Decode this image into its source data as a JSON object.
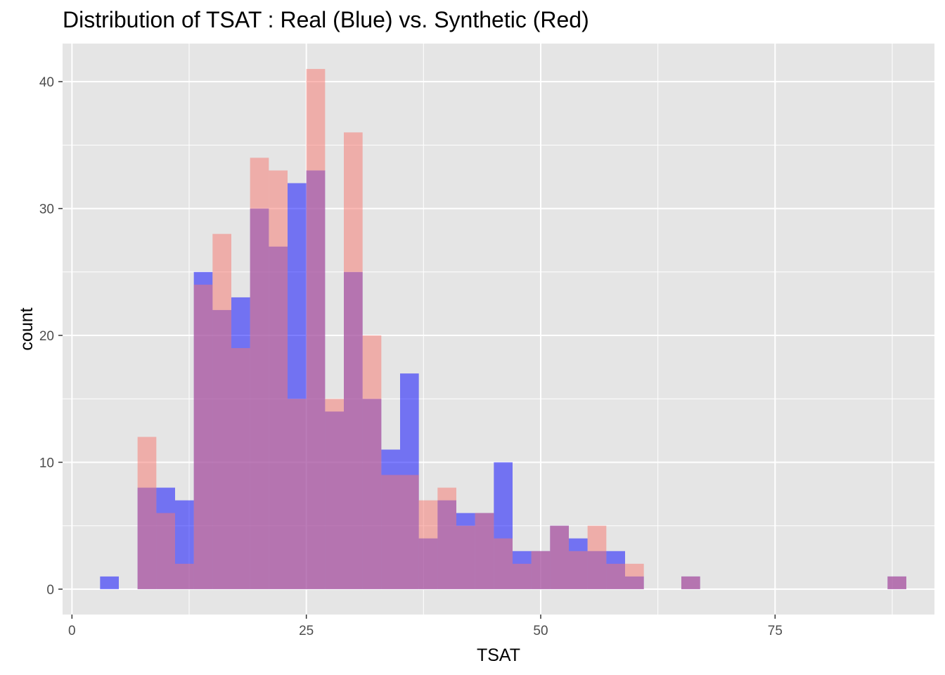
{
  "chart_data": {
    "type": "bar",
    "title": "Distribution of TSAT : Real (Blue) vs. Synthetic (Red)",
    "xlabel": "TSAT",
    "ylabel": "count",
    "xlim": [
      -1,
      92
    ],
    "ylim": [
      -2,
      43
    ],
    "x_ticks": [
      0,
      25,
      50,
      75
    ],
    "y_ticks": [
      0,
      10,
      20,
      30,
      40
    ],
    "grid": true,
    "legend": "none",
    "bin_width": 2,
    "bin_centers": [
      4,
      6,
      8,
      10,
      12,
      14,
      16,
      18,
      20,
      22,
      24,
      26,
      28,
      30,
      32,
      34,
      36,
      38,
      40,
      42,
      44,
      46,
      48,
      50,
      52,
      54,
      56,
      58,
      60,
      62,
      64,
      66,
      68,
      70,
      72,
      74,
      76,
      78,
      80,
      82,
      84,
      86,
      88
    ],
    "series": [
      {
        "color": "#0000ff",
        "opacity": 0.5,
        "values": [
          1,
          0,
          8,
          8,
          7,
          25,
          22,
          23,
          30,
          27,
          32,
          33,
          14,
          25,
          15,
          11,
          17,
          4,
          7,
          6,
          6,
          10,
          3,
          3,
          5,
          4,
          3,
          3,
          1,
          0,
          0,
          1,
          0,
          0,
          0,
          0,
          0,
          0,
          0,
          0,
          0,
          0,
          1
        ]
      },
      {
        "color": "#f8766d",
        "opacity": 0.5,
        "values": [
          0,
          0,
          12,
          6,
          2,
          24,
          28,
          19,
          34,
          33,
          15,
          41,
          15,
          36,
          20,
          9,
          9,
          7,
          8,
          5,
          6,
          4,
          2,
          3,
          5,
          3,
          5,
          2,
          2,
          0,
          0,
          1,
          0,
          0,
          0,
          0,
          0,
          0,
          0,
          0,
          0,
          0,
          1
        ]
      }
    ],
    "colors": {
      "panel_background": "#e5e5e5",
      "grid": "#ffffff",
      "real": "#0000ff",
      "synthetic": "#f8766d",
      "tick_label": "#4d4d4d"
    }
  }
}
